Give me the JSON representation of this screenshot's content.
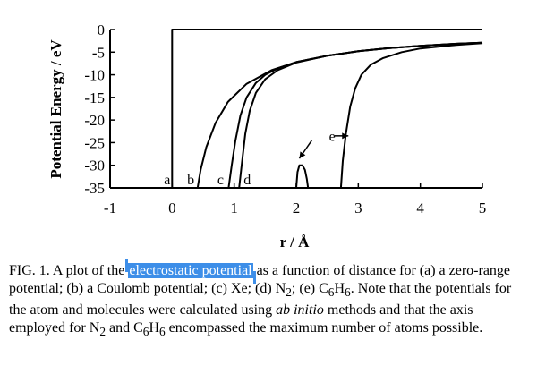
{
  "chart_data": {
    "type": "line",
    "xlabel": "r / Å",
    "ylabel": "Potential Energy / eV",
    "xlim": [
      -1,
      5
    ],
    "ylim": [
      -35,
      0
    ],
    "x_ticks": [
      "-1",
      "0",
      "1",
      "2",
      "3",
      "4",
      "5"
    ],
    "y_ticks": [
      "0",
      "-5",
      "-10",
      "-15",
      "-20",
      "-25",
      "-30",
      "-35"
    ],
    "series": [
      {
        "name": "a",
        "x": [
          0,
          0,
          5
        ],
        "y": [
          -35,
          0,
          0
        ]
      },
      {
        "name": "b",
        "x": [
          0.41,
          0.46,
          0.55,
          0.7,
          0.9,
          1.2,
          1.6,
          2.0,
          2.5,
          3.0,
          3.5,
          4.0,
          4.5,
          5.0
        ],
        "y": [
          -35,
          -31,
          -26,
          -20.6,
          -16,
          -12,
          -9,
          -7.2,
          -5.8,
          -4.8,
          -4.1,
          -3.6,
          -3.2,
          -2.9
        ]
      },
      {
        "name": "c",
        "x": [
          0.91,
          0.96,
          1.02,
          1.1,
          1.2,
          1.35,
          1.5,
          1.7,
          2.0,
          2.5,
          3.0,
          3.5,
          4.0,
          4.5,
          5.0
        ],
        "y": [
          -35,
          -30,
          -24.5,
          -19,
          -15,
          -11.8,
          -10,
          -8.6,
          -7.2,
          -5.8,
          -4.8,
          -4.1,
          -3.6,
          -3.2,
          -2.9
        ]
      },
      {
        "name": "d",
        "x": [
          1.08,
          1.12,
          1.18,
          1.25,
          1.35,
          1.5,
          1.7,
          2.0,
          2.5,
          3.0,
          3.5,
          4.0,
          4.5,
          5.0
        ],
        "y": [
          -35,
          -30,
          -23,
          -18,
          -14,
          -11,
          -9,
          -7.3,
          -5.8,
          -4.8,
          -4.1,
          -3.6,
          -3.2,
          -2.9
        ]
      },
      {
        "name": "e",
        "x": [
          2.0,
          2.02,
          2.05,
          2.1,
          2.14,
          2.17,
          2.19
        ],
        "y": [
          -35,
          -31.5,
          -30,
          -30,
          -31,
          -33,
          -35
        ]
      },
      {
        "name": "e",
        "x": [
          2.72,
          2.75,
          2.8,
          2.87,
          2.95,
          3.05,
          3.2,
          3.4,
          3.7,
          4.0,
          4.5,
          5.0
        ],
        "y": [
          -35,
          -29,
          -23,
          -17,
          -13,
          -10,
          -7.8,
          -6.3,
          -5,
          -4.2,
          -3.5,
          -3.0
        ]
      }
    ],
    "curve_labels": [
      {
        "text": "a",
        "x": -0.08,
        "y": -33.2
      },
      {
        "text": "b",
        "x": 0.3,
        "y": -33.2
      },
      {
        "text": "c",
        "x": 0.78,
        "y": -33.2
      },
      {
        "text": "d",
        "x": 1.21,
        "y": -33.2
      },
      {
        "text": "e",
        "x": 2.58,
        "y": -23.6
      }
    ],
    "annotations": [
      {
        "type": "arrow",
        "from": [
          2.25,
          -24.5
        ],
        "to": [
          2.05,
          -28.5
        ]
      },
      {
        "type": "arrow",
        "from": [
          2.62,
          -23.5
        ],
        "to": [
          2.84,
          -23.5
        ]
      }
    ]
  },
  "caption": {
    "before": "FIG. 1. A plot of the ",
    "highlight": "electrostatic potential",
    "p1": " as a function of distance for (a) a zero-range potential; (b) a Coulomb potential; (c) Xe; (d) N",
    "sub1": "2",
    "p2": "; (e) C",
    "sub2": "6",
    "p3": "H",
    "sub3": "6",
    "p4": ". Note that the potentials for the atom and molecules were calculated using ",
    "italic1": "ab initio",
    "p5": " methods and that the axis employed for N",
    "sub4": "2",
    "p6": " and C",
    "sub5": "6",
    "p7": "H",
    "sub6": "6",
    "p8": " encompassed the maximum number of atoms possible."
  },
  "colors": {
    "selection": "#3d8ee8"
  }
}
